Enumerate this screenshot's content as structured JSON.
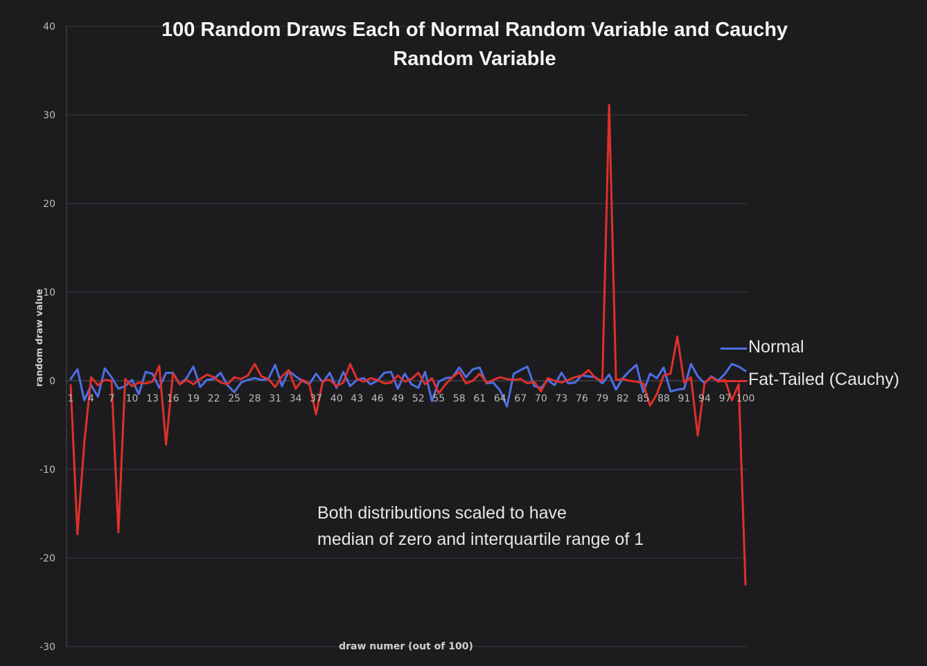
{
  "chart_data": {
    "type": "line",
    "title": "100 Random Draws Each of Normal Random Variable and Cauchy Random Variable",
    "title_lines": [
      "100 Random Draws Each of Normal Random Variable and Cauchy",
      "Random Variable"
    ],
    "xlabel": "draw numer (out of 100)",
    "ylabel": "random draw value",
    "ylim": [
      -30,
      40
    ],
    "yticks": [
      -30,
      -20,
      -10,
      0,
      10,
      20,
      30,
      40
    ],
    "xlim": [
      1,
      100
    ],
    "xticks": [
      1,
      4,
      7,
      10,
      13,
      16,
      19,
      22,
      25,
      28,
      31,
      34,
      37,
      40,
      43,
      46,
      49,
      52,
      55,
      58,
      61,
      64,
      67,
      70,
      73,
      76,
      79,
      82,
      85,
      88,
      91,
      94,
      97,
      100
    ],
    "grid": true,
    "legend_position": "right",
    "annotation": [
      "Both distributions scaled to have",
      "median of zero and interquartile range of 1"
    ],
    "series": [
      {
        "name": "Normal",
        "color": "#4f6fe6",
        "values": [
          0.2,
          1.3,
          -2.2,
          -0.5,
          -1.8,
          1.4,
          0.4,
          -0.9,
          -0.6,
          0.1,
          -1.5,
          1.0,
          0.8,
          -0.8,
          0.9,
          0.9,
          -0.4,
          0.3,
          1.6,
          -0.7,
          0.1,
          0.2,
          0.9,
          -0.5,
          -1.3,
          -0.2,
          0.1,
          0.3,
          0.1,
          0.2,
          1.8,
          -0.6,
          1.1,
          0.5,
          0.0,
          -0.4,
          0.8,
          -0.2,
          0.9,
          -0.8,
          1.0,
          -0.6,
          0.1,
          0.3,
          -0.4,
          0.0,
          0.9,
          1.0,
          -0.9,
          0.8,
          -0.4,
          -0.8,
          1.0,
          -2.3,
          -0.1,
          0.3,
          0.4,
          1.5,
          0.4,
          1.3,
          1.5,
          -0.3,
          -0.2,
          -1.1,
          -2.9,
          0.8,
          1.2,
          1.6,
          -0.6,
          -0.8,
          0.1,
          -0.5,
          0.9,
          -0.3,
          -0.2,
          0.6,
          0.5,
          0.4,
          -0.3,
          0.7,
          -1.0,
          0.3,
          1.1,
          1.8,
          -1.3,
          0.8,
          0.3,
          1.5,
          -1.2,
          -1.0,
          -0.9,
          1.9,
          0.5,
          -0.3,
          0.5,
          0.0,
          0.8,
          1.9,
          1.6,
          1.1
        ]
      },
      {
        "name": "Fat-Tailed (Cauchy)",
        "color": "#e0302a",
        "values": [
          -0.5,
          -17.3,
          -7.0,
          0.4,
          -0.5,
          0.1,
          0.0,
          -17.1,
          0.2,
          -0.6,
          -0.2,
          -0.3,
          -0.1,
          1.7,
          -7.2,
          0.8,
          -0.4,
          0.1,
          -0.4,
          0.2,
          0.7,
          0.4,
          -0.2,
          -0.4,
          0.4,
          0.2,
          0.6,
          1.9,
          0.5,
          0.2,
          -0.7,
          0.5,
          1.2,
          -0.9,
          0.1,
          -0.3,
          -3.8,
          0.0,
          0.1,
          -0.6,
          -0.2,
          1.9,
          0.2,
          -0.1,
          0.3,
          0.1,
          -0.3,
          -0.2,
          0.6,
          -0.1,
          0.2,
          0.9,
          -0.4,
          0.3,
          -1.4,
          -0.4,
          0.4,
          1.0,
          -0.3,
          0.0,
          0.8,
          -0.2,
          0.1,
          0.4,
          0.2,
          0.1,
          0.2,
          -0.3,
          -0.1,
          -1.2,
          0.3,
          0.0,
          -0.2,
          0.1,
          0.4,
          0.6,
          1.2,
          0.3,
          0.0,
          31.1,
          0.1,
          0.2,
          0.0,
          -0.1,
          -0.3,
          -2.8,
          -1.5,
          0.6,
          0.8,
          5.0,
          -0.2,
          0.4,
          -6.2,
          -0.2,
          0.4,
          -0.1,
          0.1,
          -2.2,
          -0.4,
          -23.0
        ]
      }
    ]
  }
}
